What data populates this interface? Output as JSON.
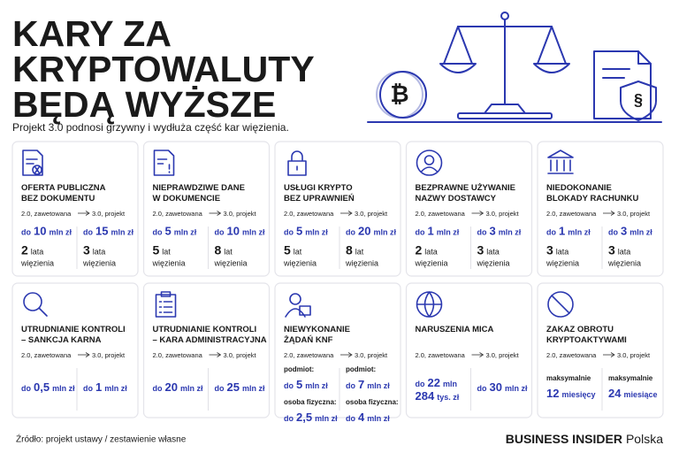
{
  "header": {
    "title_lines": [
      "KARY ZA",
      "KRYPTOWALUTY",
      "BĘDĄ WYŻSZE"
    ],
    "subtitle": "Projekt 3.0 podnosi grzywny i wydłuża część kar więzienia.",
    "coin_symbol": "₿",
    "shield_symbol": "§"
  },
  "cards": [
    {
      "title": [
        "OFERTA PUBLICZNA",
        "BEZ DOKUMENTU"
      ],
      "from": "2.0, zawetowana",
      "to": "3.0, projekt",
      "left": [
        {
          "pre": "do",
          "num": "10",
          "unit": "mln zł"
        },
        {
          "num": "2",
          "unit": "lata",
          "label": "więzienia"
        }
      ],
      "right": [
        {
          "pre": "do",
          "num": "15",
          "unit": "mln zł"
        },
        {
          "num": "3",
          "unit": "lata",
          "label": "więzienia"
        }
      ]
    },
    {
      "title": [
        "NIEPRAWDZIWE DANE",
        "W DOKUMENCIE"
      ],
      "from": "2.0, zawetowana",
      "to": "3.0, projekt",
      "left": [
        {
          "pre": "do",
          "num": "5",
          "unit": "mln zł"
        },
        {
          "num": "5",
          "unit": "lat",
          "label": "więzienia"
        }
      ],
      "right": [
        {
          "pre": "do",
          "num": "10",
          "unit": "mln zł"
        },
        {
          "num": "8",
          "unit": "lat",
          "label": "więzienia"
        }
      ]
    },
    {
      "title": [
        "USŁUGI KRYPTO",
        "BEZ UPRAWNIEŃ"
      ],
      "from": "2.0, zawetowana",
      "to": "3.0, projekt",
      "left": [
        {
          "pre": "do",
          "num": "5",
          "unit": "mln zł"
        },
        {
          "num": "5",
          "unit": "lat",
          "label": "więzienia"
        }
      ],
      "right": [
        {
          "pre": "do",
          "num": "20",
          "unit": "mln zł"
        },
        {
          "num": "8",
          "unit": "lat",
          "label": "więzienia"
        }
      ]
    },
    {
      "title": [
        "BEZPRAWNE UŻYWANIE",
        "NAZWY DOSTAWCY"
      ],
      "from": "2.0, zawetowana",
      "to": "3.0, projekt",
      "left": [
        {
          "pre": "do",
          "num": "1",
          "unit": "mln zł"
        },
        {
          "num": "2",
          "unit": "lata",
          "label": "więzienia"
        }
      ],
      "right": [
        {
          "pre": "do",
          "num": "3",
          "unit": "mln zł"
        },
        {
          "num": "3",
          "unit": "lata",
          "label": "więzienia"
        }
      ]
    },
    {
      "title": [
        "NIEDOKONANIE",
        "BLOKADY RACHUNKU"
      ],
      "from": "2.0, zawetowana",
      "to": "3.0, projekt",
      "left": [
        {
          "pre": "do",
          "num": "1",
          "unit": "mln zł"
        },
        {
          "num": "3",
          "unit": "lata",
          "label": "więzienia"
        }
      ],
      "right": [
        {
          "pre": "do",
          "num": "3",
          "unit": "mln zł"
        },
        {
          "num": "3",
          "unit": "lata",
          "label": "więzienia"
        }
      ]
    },
    {
      "title": [
        "UTRUDNIANIE KONTROLI",
        "– SANKCJA KARNA"
      ],
      "from": "2.0, zawetowana",
      "to": "3.0, projekt",
      "left": [
        {
          "pre": "do",
          "num": "0,5",
          "unit": "mln zł"
        }
      ],
      "right": [
        {
          "pre": "do",
          "num": "1",
          "unit": "mln zł"
        }
      ]
    },
    {
      "title": [
        "UTRUDNIANIE KONTROLI",
        "– KARA ADMINISTRACYJNA"
      ],
      "from": "2.0, zawetowana",
      "to": "3.0, projekt",
      "left": [
        {
          "pre": "do",
          "num": "20",
          "unit": "mln zł"
        }
      ],
      "right": [
        {
          "pre": "do",
          "num": "25",
          "unit": "mln zł"
        }
      ]
    },
    {
      "title": [
        "NIEWYKONANIE",
        "ŻĄDAŃ KNF"
      ],
      "from": "2.0, zawetowana",
      "to": "3.0, projekt",
      "left": [
        {
          "caption": "podmiot:"
        },
        {
          "pre": "do",
          "num": "5",
          "unit": "mln zł"
        },
        {
          "caption": "osoba fizyczna:"
        },
        {
          "pre": "do",
          "num": "2,5",
          "unit": "mln zł"
        }
      ],
      "right": [
        {
          "caption": "podmiot:"
        },
        {
          "pre": "do",
          "num": "7",
          "unit": "mln zł"
        },
        {
          "caption": "osoba fizyczna:"
        },
        {
          "pre": "do",
          "num": "4",
          "unit": "mln zł"
        }
      ]
    },
    {
      "title": [
        "NARUSZENIA MICA"
      ],
      "from": "2.0, zawetowana",
      "to": "3.0, projekt",
      "left": [
        {
          "pre": "do",
          "num": "22",
          "unit": "mln",
          "num2": "284",
          "unit2": "tys. zł"
        }
      ],
      "right": [
        {
          "pre": "do",
          "num": "30",
          "unit": "mln zł"
        }
      ]
    },
    {
      "title": [
        "ZAKAZ OBROTU",
        "KRYPTOAKTYWAMI"
      ],
      "from": "2.0, zawetowana",
      "to": "3.0, projekt",
      "left": [
        {
          "caption": "maksymalnie"
        },
        {
          "num": "12",
          "unit": "miesięcy"
        }
      ],
      "right": [
        {
          "caption": "maksymalnie"
        },
        {
          "num": "24",
          "unit": "miesiące"
        }
      ]
    }
  ],
  "footer": {
    "source": "Źródło: projekt ustawy / zestawienie własne",
    "brand": "BUSINESS INSIDER",
    "edition": "Polska"
  }
}
